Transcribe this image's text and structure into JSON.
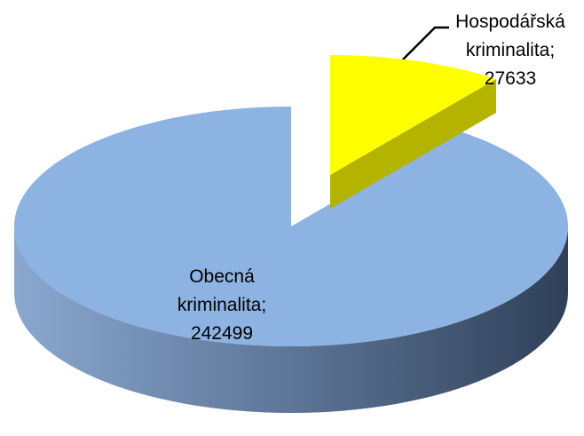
{
  "chart_data": {
    "type": "pie",
    "values": [
      27633,
      242499
    ],
    "value_labels": [
      "Hospodářská kriminalita; 27633",
      "Obecná kriminalita; 242499"
    ],
    "colors": [
      "#ffff00",
      "#8db3e2"
    ],
    "side_colors": [
      "#b3b300",
      "#2f4058"
    ]
  }
}
